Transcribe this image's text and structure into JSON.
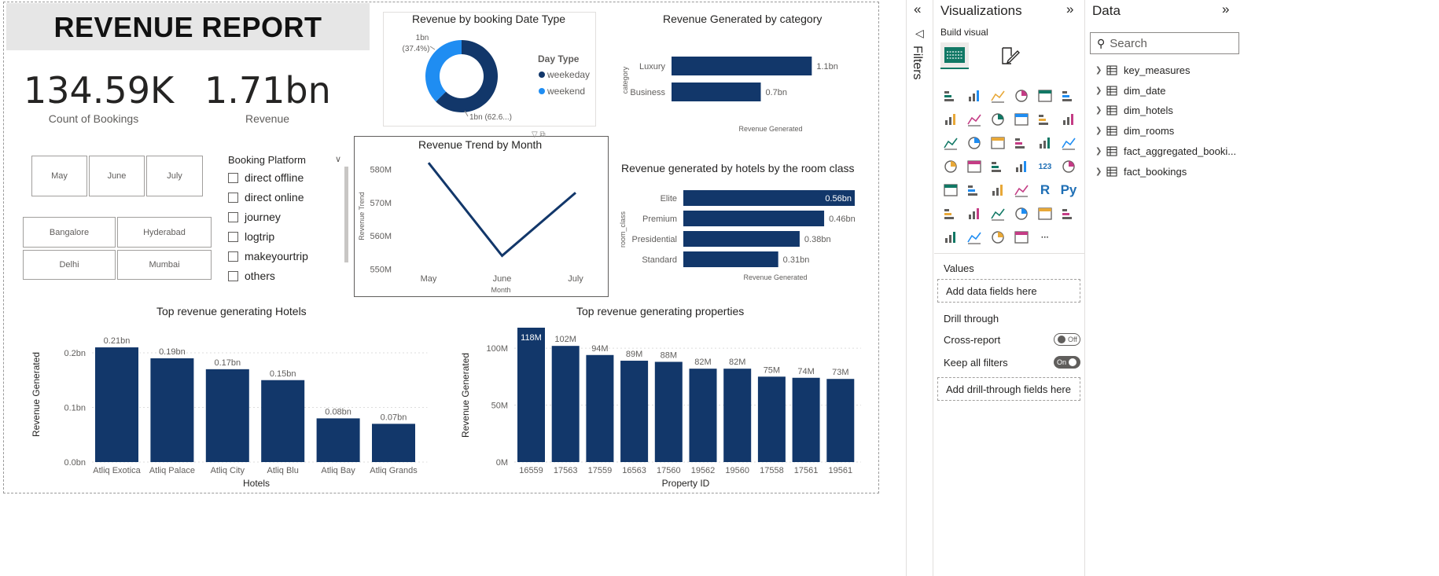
{
  "report": {
    "title": "REVENUE REPORT",
    "kpis": [
      {
        "value": "134.59K",
        "label": "Count of Bookings"
      },
      {
        "value": "1.71bn",
        "label": "Revenue"
      }
    ],
    "month_slicer": [
      "May",
      "June",
      "July"
    ],
    "city_slicer": [
      "Bangalore",
      "Hyderabad",
      "Delhi",
      "Mumbai"
    ],
    "platform_slicer": {
      "title": "Booking Platform",
      "items": [
        "direct offline",
        "direct online",
        "journey",
        "logtrip",
        "makeyourtrip",
        "others"
      ]
    }
  },
  "colors": {
    "dark_blue": "#12376a",
    "light_blue": "#1f8df2",
    "accent_green": "#117865"
  },
  "chart_data": [
    {
      "id": "donut",
      "type": "pie",
      "title": "Revenue by booking Date Type",
      "legend_title": "Day Type",
      "legend": [
        "weekeday",
        "weekend"
      ],
      "values": [
        62.6,
        37.4
      ],
      "labels": [
        "1bn (62.6...)",
        "1bn\n(37.4%)"
      ],
      "legend_placement": "right"
    },
    {
      "id": "category",
      "type": "bar",
      "orientation": "horizontal",
      "title": "Revenue Generated by category",
      "ylabel": "category",
      "xlabel": "Revenue Generated",
      "categories": [
        "Luxury",
        "Business"
      ],
      "values": [
        1.1,
        0.7
      ],
      "data_labels": [
        "1.1bn",
        "0.7bn"
      ],
      "xlim": [
        0,
        1.4
      ]
    },
    {
      "id": "trend",
      "type": "line",
      "title": "Revenue Trend by Month",
      "ylabel": "Revenue Trend",
      "xlabel": "Month",
      "x": [
        "May",
        "June",
        "July"
      ],
      "values": [
        582,
        554,
        573
      ],
      "yticks": [
        550,
        560,
        570,
        580
      ],
      "ytick_labels": [
        "550M",
        "560M",
        "570M",
        "580M"
      ],
      "ylim": [
        547,
        583
      ]
    },
    {
      "id": "room_class",
      "type": "bar",
      "orientation": "horizontal",
      "title": "Revenue generated by hotels by the room class",
      "ylabel": "room_class",
      "xlabel": "Revenue Generated",
      "categories": [
        "Elite",
        "Premium",
        "Presidential",
        "Standard"
      ],
      "values": [
        0.56,
        0.46,
        0.38,
        0.31
      ],
      "data_labels": [
        "0.56bn",
        "0.46bn",
        "0.38bn",
        "0.31bn"
      ],
      "xlim": [
        0,
        0.56
      ]
    },
    {
      "id": "hotels",
      "type": "bar",
      "title": "Top revenue generating Hotels",
      "ylabel": "Revenue Generated",
      "xlabel": "Hotels",
      "categories": [
        "Atliq Exotica",
        "Atliq Palace",
        "Atliq City",
        "Atliq Blu",
        "Atliq Bay",
        "Atliq Grands"
      ],
      "values": [
        0.21,
        0.19,
        0.17,
        0.15,
        0.08,
        0.07
      ],
      "data_labels": [
        "0.21bn",
        "0.19bn",
        "0.17bn",
        "0.15bn",
        "0.08bn",
        "0.07bn"
      ],
      "yticks": [
        0,
        0.1,
        0.2
      ],
      "ytick_labels": [
        "0.0bn",
        "0.1bn",
        "0.2bn"
      ],
      "ylim": [
        0,
        0.2
      ],
      "grid": true
    },
    {
      "id": "properties",
      "type": "bar",
      "title": "Top revenue generating properties",
      "ylabel": "Revenue Generated",
      "xlabel": "Property ID",
      "categories": [
        "16559",
        "17563",
        "17559",
        "16563",
        "17560",
        "19562",
        "19560",
        "17558",
        "17561",
        "19561"
      ],
      "values": [
        118,
        102,
        94,
        89,
        88,
        82,
        82,
        75,
        74,
        73
      ],
      "data_labels": [
        "118M",
        "102M",
        "94M",
        "89M",
        "88M",
        "82M",
        "82M",
        "75M",
        "74M",
        "73M"
      ],
      "yticks": [
        0,
        50,
        100
      ],
      "ytick_labels": [
        "0M",
        "50M",
        "100M"
      ],
      "ylim": [
        0,
        118
      ],
      "grid": true
    }
  ],
  "filters_pane": {
    "label": "Filters"
  },
  "viz_pane": {
    "title": "Visualizations",
    "build_visual": "Build visual",
    "values_label": "Values",
    "values_well": "Add data fields here",
    "drill_through": "Drill through",
    "cross_report": "Cross-report",
    "cross_report_state": "Off",
    "keep_filters": "Keep all filters",
    "keep_filters_state": "On",
    "drill_well": "Add drill-through fields here",
    "icons": [
      "stacked-bar-icon",
      "clustered-column-icon",
      "clustered-bar-icon",
      "stacked-column-icon",
      "100-bar-icon",
      "100-column-icon",
      "line-chart-icon",
      "area-chart-icon",
      "stacked-area-icon",
      "line-column-icon",
      "line-stacked-column-icon",
      "ribbon-chart-icon",
      "waterfall-icon",
      "funnel-icon",
      "scatter-icon",
      "pie-chart-icon",
      "donut-chart-icon",
      "treemap-icon",
      "map-icon",
      "filled-map-icon",
      "azure-map-icon",
      "gauge-icon",
      "card-icon",
      "multi-row-card-icon",
      "kpi-icon",
      "slicer-icon",
      "table-icon",
      "matrix-icon",
      "r-visual-icon",
      "python-visual-icon",
      "key-influencers-icon",
      "decomposition-tree-icon",
      "qa-icon",
      "smart-narrative-icon",
      "goals-icon",
      "paginated-report-icon",
      "power-apps-icon",
      "power-automate-icon",
      "diamond-visual-icon",
      "chevron-visual-icon",
      "more-visuals-icon"
    ],
    "icon_text": {
      "r-visual-icon": "R",
      "python-visual-icon": "Py",
      "more-visuals-icon": "···",
      "card-icon": "123"
    }
  },
  "data_pane": {
    "title": "Data",
    "search_placeholder": "Search",
    "tables": [
      "key_measures",
      "dim_date",
      "dim_hotels",
      "dim_rooms",
      "fact_aggregated_booki...",
      "fact_bookings"
    ]
  }
}
